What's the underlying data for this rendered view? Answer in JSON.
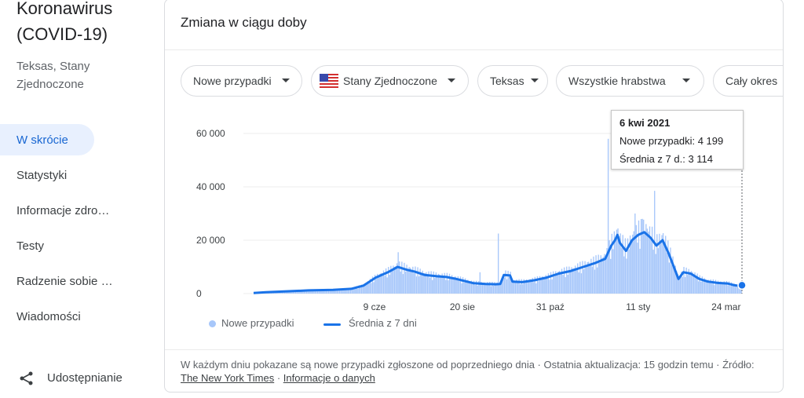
{
  "sidebar": {
    "title": "Koronawirus (COVID-19)",
    "subtitle": "Teksas, Stany Zjednoczone",
    "items": [
      {
        "label": "W skrócie",
        "active": true
      },
      {
        "label": "Statystyki"
      },
      {
        "label": "Informacje zdro…"
      },
      {
        "label": "Testy"
      },
      {
        "label": "Radzenie sobie …"
      },
      {
        "label": "Wiadomości"
      }
    ],
    "share_label": "Udostępnianie"
  },
  "card": {
    "title": "Zmiana w ciągu doby",
    "filters": {
      "metric": "Nowe przypadki",
      "country": "Stany Zjednoczone",
      "state": "Teksas",
      "county": "Wszystkie hrabstwa",
      "period": "Cały okres"
    },
    "tooltip": {
      "date": "6 kwi 2021",
      "new_cases": "Nowe przypadki: 4 199",
      "avg": "Średnia z 7 d.: 3 114"
    },
    "legend": {
      "bars": "Nowe przypadki",
      "line": "Średnia z 7 dni"
    },
    "footer": {
      "text1": "W każdym dniu pokazane są nowe przypadki zgłoszone od poprzedniego dnia · Ostatnia aktualizacja: 15 godzin temu · Źródło: ",
      "source_link": "The New York Times",
      "sep": " · ",
      "info_link": "Informacje o danych"
    }
  },
  "colors": {
    "bar": "#a7c7fa",
    "line": "#1a73e8",
    "active_nav_bg": "#e8f0fe",
    "active_nav_text": "#1967d2"
  },
  "chart_data": {
    "type": "bar",
    "ylim": [
      0,
      60000
    ],
    "yticks": [
      "60 000",
      "40 000",
      "20 000",
      "0"
    ],
    "ytick_values": [
      60000,
      40000,
      20000,
      0
    ],
    "xticks": [
      "9 cze",
      "20 sie",
      "31 paź",
      "11 sty",
      "24 mar"
    ],
    "xtick_days": [
      99,
      171,
      243,
      315,
      387
    ],
    "total_days": 400,
    "series": [
      {
        "name": "Średnia z 7 dni",
        "kind": "line",
        "points": [
          [
            0,
            200
          ],
          [
            10,
            500
          ],
          [
            25,
            800
          ],
          [
            45,
            1200
          ],
          [
            65,
            1400
          ],
          [
            80,
            1800
          ],
          [
            90,
            3000
          ],
          [
            100,
            6000
          ],
          [
            110,
            8000
          ],
          [
            118,
            10000
          ],
          [
            125,
            9000
          ],
          [
            132,
            8200
          ],
          [
            140,
            7000
          ],
          [
            150,
            6500
          ],
          [
            158,
            6200
          ],
          [
            166,
            5500
          ],
          [
            172,
            4800
          ],
          [
            180,
            3900
          ],
          [
            190,
            3600
          ],
          [
            198,
            3500
          ],
          [
            202,
            3600
          ],
          [
            205,
            7000
          ],
          [
            210,
            6800
          ],
          [
            212,
            4500
          ],
          [
            220,
            4300
          ],
          [
            230,
            5000
          ],
          [
            240,
            6000
          ],
          [
            250,
            7500
          ],
          [
            260,
            8500
          ],
          [
            270,
            10000
          ],
          [
            280,
            11500
          ],
          [
            288,
            13000
          ],
          [
            293,
            18000
          ],
          [
            296,
            20000
          ],
          [
            298,
            22000
          ],
          [
            300,
            19000
          ],
          [
            305,
            16000
          ],
          [
            310,
            20000
          ],
          [
            315,
            22000
          ],
          [
            320,
            23000
          ],
          [
            325,
            21000
          ],
          [
            330,
            18000
          ],
          [
            335,
            20000
          ],
          [
            340,
            15000
          ],
          [
            345,
            9000
          ],
          [
            348,
            5500
          ],
          [
            352,
            8000
          ],
          [
            358,
            7500
          ],
          [
            365,
            5500
          ],
          [
            372,
            4500
          ],
          [
            380,
            4000
          ],
          [
            388,
            3800
          ],
          [
            393,
            3200
          ],
          [
            396,
            3000
          ],
          [
            400,
            3114
          ]
        ]
      },
      {
        "name": "Nowe przypadki",
        "kind": "bars",
        "spikes": [
          [
            118,
            15500
          ],
          [
            185,
            8000
          ],
          [
            200,
            22500
          ],
          [
            290,
            58000
          ],
          [
            312,
            30000
          ],
          [
            318,
            28000
          ],
          [
            328,
            38500
          ]
        ]
      }
    ]
  }
}
